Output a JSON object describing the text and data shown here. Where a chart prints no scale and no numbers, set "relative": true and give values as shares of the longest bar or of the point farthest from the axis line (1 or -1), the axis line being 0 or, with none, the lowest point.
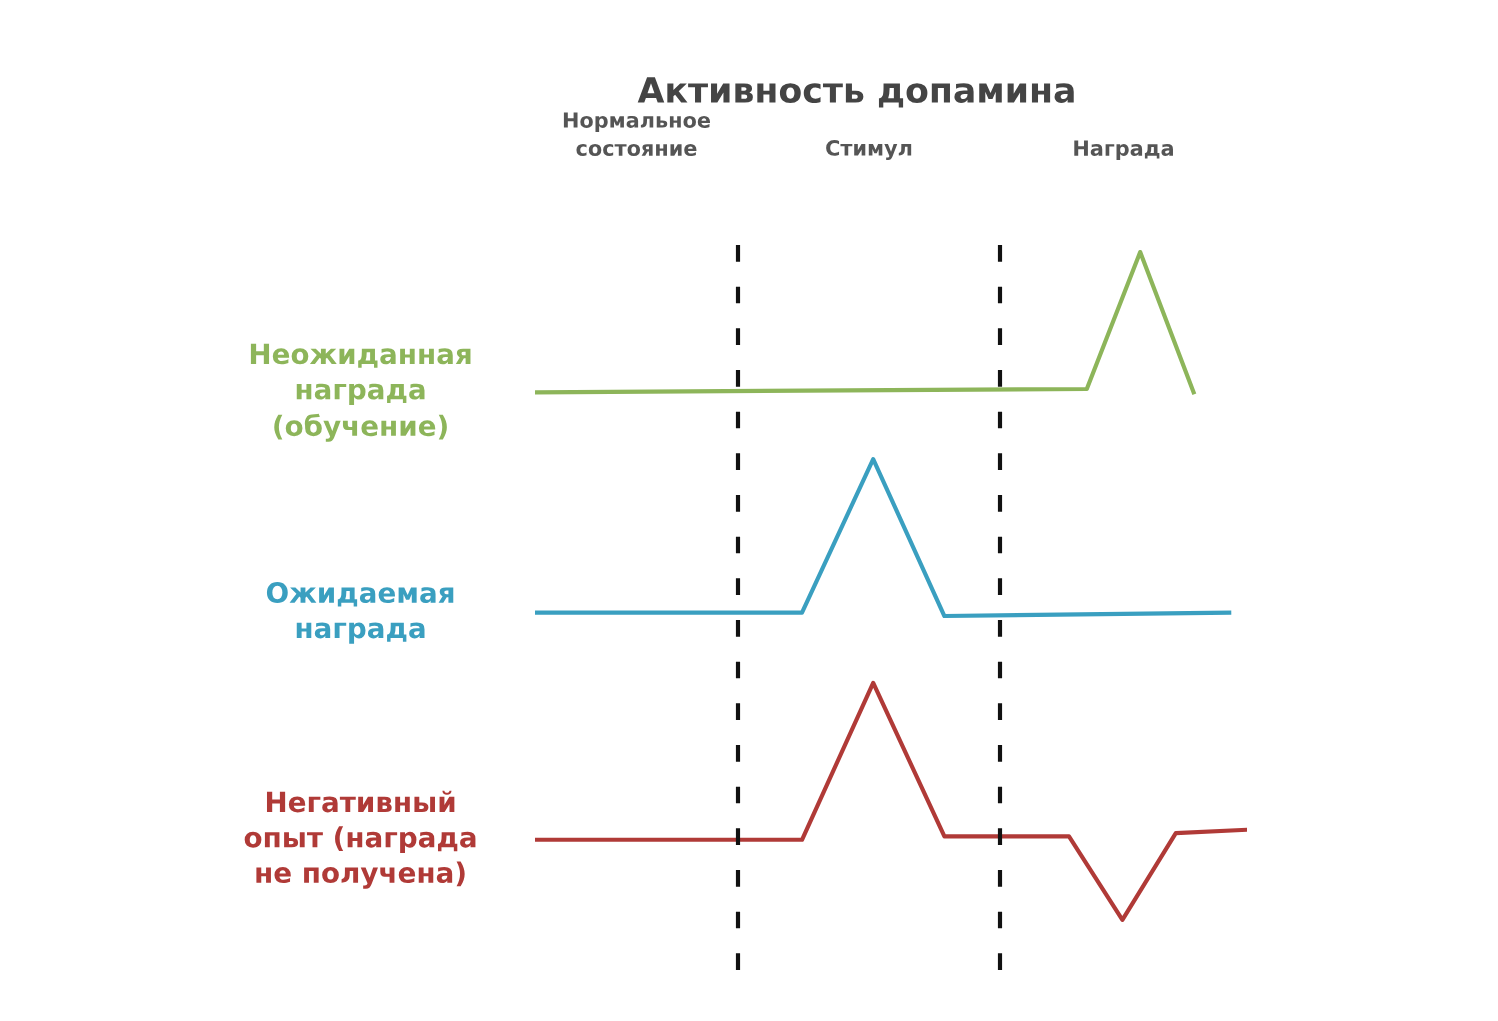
{
  "chart_data": {
    "type": "line",
    "title": "Активность допамина",
    "relative": true,
    "legend": false,
    "grid": false,
    "tick_labels": false,
    "line_style": "solid",
    "marker": "none",
    "categories": [
      null,
      null,
      null,
      null,
      null,
      null,
      null,
      null,
      null,
      null,
      null,
      null,
      null,
      null,
      null,
      null,
      null,
      null,
      null,
      null,
      null,
      null,
      null,
      null,
      null,
      null,
      null,
      null,
      null,
      null,
      null,
      null,
      null,
      null,
      null,
      null,
      null,
      null,
      null,
      null,
      null
    ],
    "series": [
      {
        "name": "Неожиданная\nнаграда\n(обучение)",
        "color": "#8db55a",
        "values": [
          0.79,
          null,
          null,
          null,
          null,
          null,
          null,
          null,
          null,
          null,
          null,
          null,
          null,
          null,
          null,
          null,
          null,
          null,
          null,
          null,
          null,
          null,
          null,
          null,
          null,
          null,
          null,
          null,
          null,
          null,
          null,
          0.795,
          null,
          null,
          1,
          null,
          null,
          0.79,
          null,
          null,
          null
        ]
      },
      {
        "name": "Ожидаемая\nнаграда",
        "color": "#3a9fc0",
        "values": [
          0.46,
          null,
          null,
          null,
          null,
          null,
          null,
          null,
          null,
          null,
          null,
          null,
          null,
          null,
          null,
          0.46,
          null,
          null,
          null,
          0.69,
          null,
          null,
          null,
          0.455,
          null,
          null,
          null,
          null,
          null,
          null,
          null,
          null,
          null,
          null,
          null,
          null,
          null,
          null,
          null,
          0.46,
          null
        ]
      },
      {
        "name": "Негативный\nопыт (награда\nне получена)",
        "color": "#b03a37",
        "values": [
          0.12,
          null,
          null,
          null,
          null,
          null,
          null,
          null,
          null,
          null,
          null,
          null,
          null,
          null,
          null,
          0.12,
          null,
          null,
          null,
          0.355,
          null,
          null,
          null,
          0.125,
          null,
          null,
          null,
          null,
          null,
          null,
          0.125,
          null,
          null,
          0,
          null,
          null,
          0.13,
          null,
          null,
          null,
          0.135
        ]
      }
    ],
    "annotations": [
      "Нормальное\nсостояние",
      "Стимул",
      "Награда"
    ]
  }
}
